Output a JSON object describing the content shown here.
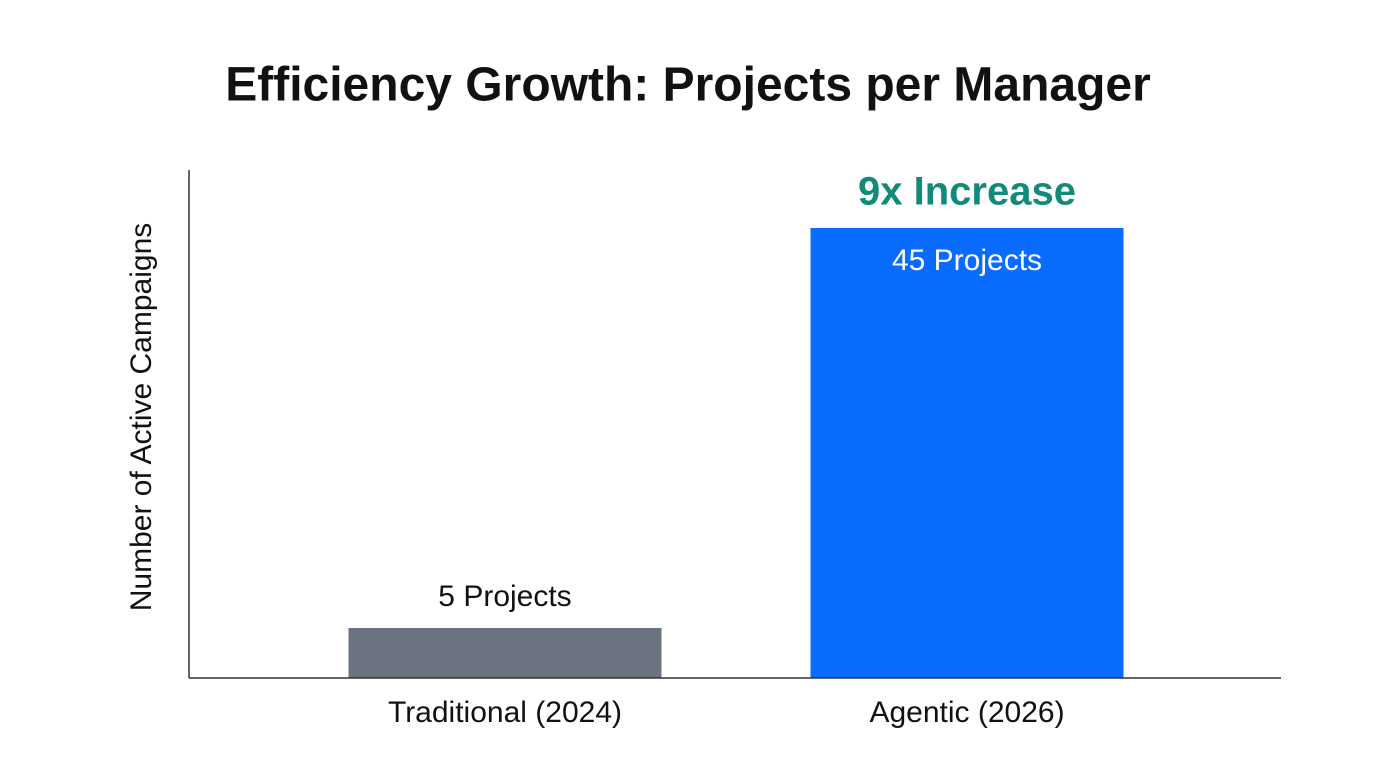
{
  "chart_data": {
    "type": "bar",
    "title": "Efficiency Growth: Projects per Manager",
    "y_label": "Number of Active Campaigns",
    "categories": [
      "Traditional (2024)",
      "Agentic (2026)"
    ],
    "values": [
      5,
      45
    ],
    "value_labels": [
      "5 Projects",
      "45 Projects"
    ],
    "colors": [
      "#6b7280",
      "#0a6cff"
    ],
    "annotation": "9x Increase",
    "annotation_color": "#128a7a",
    "ylim": [
      0,
      50
    ],
    "grid": false
  }
}
